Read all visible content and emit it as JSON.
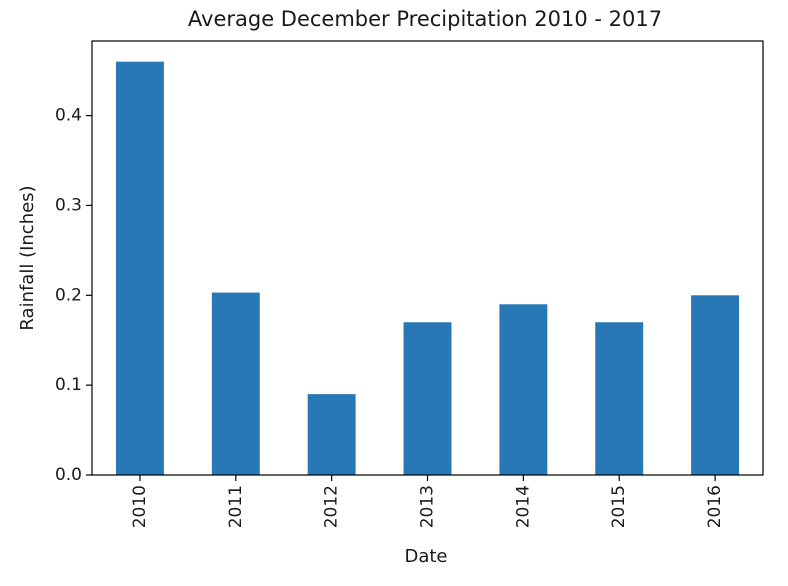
{
  "chart_data": {
    "type": "bar",
    "title": "Average December Precipitation 2010 - 2017",
    "xlabel": "Date",
    "ylabel": "Rainfall (Inches)",
    "categories": [
      "2010",
      "2011",
      "2012",
      "2013",
      "2014",
      "2015",
      "2016"
    ],
    "values": [
      0.46,
      0.203,
      0.09,
      0.17,
      0.19,
      0.17,
      0.2
    ],
    "ylim": [
      0,
      0.483
    ],
    "yticks": [
      0.0,
      0.1,
      0.2,
      0.3,
      0.4
    ],
    "ytick_labels": [
      "0.0",
      "0.1",
      "0.2",
      "0.3",
      "0.4"
    ],
    "bar_color": "#2878b5",
    "grid": false,
    "legend": false
  }
}
